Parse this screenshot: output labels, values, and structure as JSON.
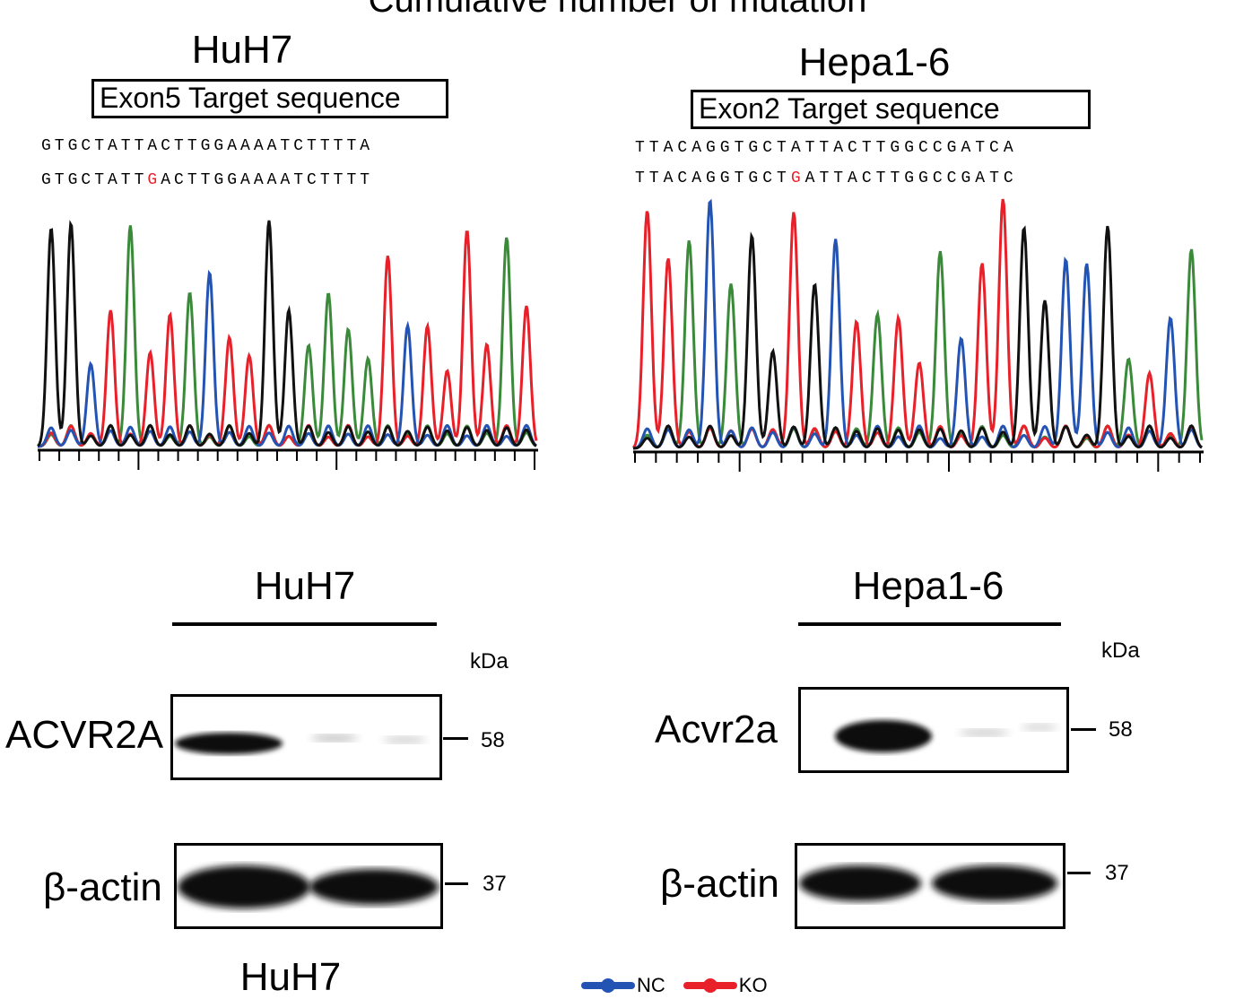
{
  "figure_title": "Cumulative number of mutation",
  "colors": {
    "base_A": "#3a8a3a",
    "base_T": "#e8202a",
    "base_C": "#2353b3",
    "base_G": "#111111",
    "mutation_highlight": "#e8202a",
    "nc": "#2353b3",
    "ko": "#e8202a"
  },
  "panels": {
    "huh7_seq": {
      "title": "HuH7",
      "target_label": "Exon5 Target sequence",
      "seq_top": "GTGCTATTACTTGGAAAATCTTTTA",
      "seq_bottom_pre": "GTGCTATT",
      "seq_bottom_mut": "G",
      "seq_bottom_post": "ACTTGGAAAATCTTTT",
      "peak_bases": "GGCTATTACTTGGAAAATCTTTTAT"
    },
    "hepa_seq": {
      "title": "Hepa1-6",
      "target_label": "Exon2 Target sequence",
      "seq_top": "TTACAGGTGCTATTACTTGGCCGATCA",
      "seq_bottom_pre": "TTACAGGTGCT",
      "seq_bottom_mut": "G",
      "seq_bottom_post": "ATTACTTGGCCGATC",
      "peak_bases": "TTACAGGTGCTATTACTTGGCCGATCA"
    },
    "huh7_wb": {
      "title": "HuH7",
      "kda_label": "kDa",
      "rows": [
        {
          "label": "ACVR2A",
          "mw": "58"
        },
        {
          "label": "β-actin",
          "mw": "37"
        }
      ],
      "footer": "HuH7"
    },
    "hepa_wb": {
      "title": "Hepa1-6",
      "kda_label": "kDa",
      "rows": [
        {
          "label": "Acvr2a",
          "mw": "58"
        },
        {
          "label": "β-actin",
          "mw": "37"
        }
      ]
    }
  },
  "legend": [
    {
      "label": "NC",
      "color": "#2353b3"
    },
    {
      "label": "KO",
      "color": "#e8202a"
    }
  ]
}
